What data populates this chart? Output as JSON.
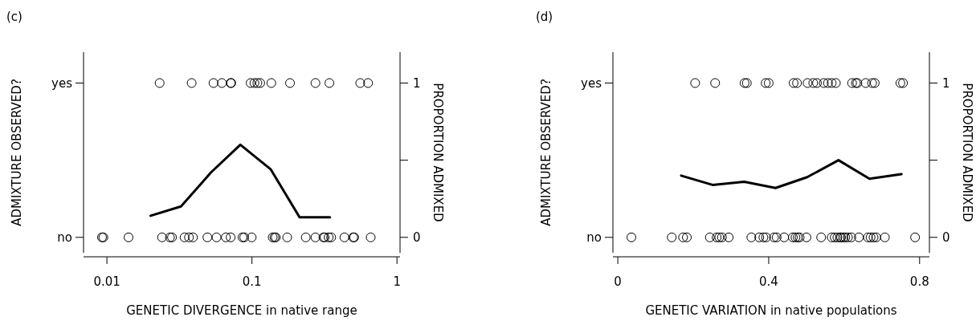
{
  "chart_data": [
    {
      "type": "scatter",
      "title": "(c)",
      "xlabel": "GENETIC DIVERGENCE in native range",
      "ylabel": "ADMIXTURE OBSERVED?",
      "y2label": "PROPORTION ADMIXED",
      "log": "x",
      "marker": "circle",
      "grid": false,
      "xlim": [
        0.0069,
        1.05
      ],
      "xticks": [
        0.01,
        0.1,
        1
      ],
      "y_categories": [
        "yes",
        "no"
      ],
      "y2lim": [
        -0.1,
        1.2
      ],
      "y2ticks": [
        {
          "value": 0,
          "label": "0"
        },
        {
          "value": 0.5,
          "label": null
        },
        {
          "value": 1,
          "label": "1"
        }
      ],
      "series": [
        {
          "axis": "y2",
          "color": "#000000",
          "x": [
            0.0231,
            0.0384,
            0.0543,
            0.0621,
            0.0713,
            0.072,
            0.098,
            0.104,
            0.109,
            0.114,
            0.136,
            0.183,
            0.274,
            0.342,
            0.558,
            0.632
          ],
          "values": [
            1,
            1,
            1,
            1,
            1,
            1,
            1,
            1,
            1,
            1,
            1,
            1,
            1,
            1,
            1,
            1
          ]
        },
        {
          "axis": "y2",
          "color": "#000000",
          "x": [
            0.00925,
            0.00945,
            0.0141,
            0.024,
            0.0272,
            0.0281,
            0.0343,
            0.0368,
            0.0392,
            0.0493,
            0.057,
            0.0661,
            0.0713,
            0.0861,
            0.0885,
            0.0996,
            0.139,
            0.143,
            0.146,
            0.175,
            0.235,
            0.274,
            0.311,
            0.317,
            0.338,
            0.352,
            0.434,
            0.499,
            0.507,
            0.659
          ],
          "values": [
            0,
            0,
            0,
            0,
            0,
            0,
            0,
            0,
            0,
            0,
            0,
            0,
            0,
            0,
            0,
            0,
            0,
            0,
            0,
            0,
            0,
            0,
            0,
            0,
            0,
            0,
            0,
            0,
            0,
            0
          ]
        },
        {
          "type": "line",
          "axis": "y2",
          "color": "#000000",
          "marker": "none",
          "x": [
            0.02,
            0.0324,
            0.0521,
            0.0832,
            0.135,
            0.213,
            0.345
          ],
          "values": [
            0.14,
            0.2,
            0.42,
            0.6,
            0.44,
            0.13,
            0.13
          ]
        }
      ]
    },
    {
      "type": "scatter",
      "title": "(d)",
      "xlabel": "GENETIC VARIATION in native populations",
      "ylabel": "ADMIXTURE OBSERVED?",
      "y2label": "PROPORTION ADMIXED",
      "marker": "circle",
      "grid": false,
      "xlim": [
        -0.013,
        0.826
      ],
      "xticks": [
        0,
        0.4,
        0.8
      ],
      "y_categories": [
        "yes",
        "no"
      ],
      "y2lim": [
        -0.1,
        1.2
      ],
      "y2ticks": [
        {
          "value": 0,
          "label": "0"
        },
        {
          "value": 0.5,
          "label": null
        },
        {
          "value": 1,
          "label": "1"
        }
      ],
      "series": [
        {
          "axis": "y2",
          "color": "#000000",
          "x": [
            0.205,
            0.258,
            0.336,
            0.342,
            0.392,
            0.4,
            0.466,
            0.475,
            0.503,
            0.518,
            0.528,
            0.546,
            0.557,
            0.567,
            0.578,
            0.621,
            0.631,
            0.635,
            0.657,
            0.674,
            0.681,
            0.749,
            0.756
          ],
          "values": [
            1,
            1,
            1,
            1,
            1,
            1,
            1,
            1,
            1,
            1,
            1,
            1,
            1,
            1,
            1,
            1,
            1,
            1,
            1,
            1,
            1,
            1,
            1
          ]
        },
        {
          "axis": "y2",
          "color": "#000000",
          "x": [
            0.036,
            0.143,
            0.173,
            0.183,
            0.244,
            0.262,
            0.269,
            0.276,
            0.294,
            0.354,
            0.375,
            0.386,
            0.393,
            0.414,
            0.421,
            0.441,
            0.464,
            0.471,
            0.477,
            0.482,
            0.5,
            0.539,
            0.567,
            0.575,
            0.582,
            0.589,
            0.592,
            0.598,
            0.603,
            0.61,
            0.619,
            0.639,
            0.663,
            0.67,
            0.678,
            0.685,
            0.708,
            0.788
          ],
          "values": [
            0,
            0,
            0,
            0,
            0,
            0,
            0,
            0,
            0,
            0,
            0,
            0,
            0,
            0,
            0,
            0,
            0,
            0,
            0,
            0,
            0,
            0,
            0,
            0,
            0,
            0,
            0,
            0,
            0,
            0,
            0,
            0,
            0,
            0,
            0,
            0,
            0,
            0
          ]
        },
        {
          "type": "line",
          "axis": "y2",
          "color": "#000000",
          "marker": "none",
          "x": [
            0.168,
            0.251,
            0.335,
            0.418,
            0.502,
            0.585,
            0.667,
            0.752
          ],
          "values": [
            0.4,
            0.34,
            0.36,
            0.32,
            0.39,
            0.5,
            0.38,
            0.41
          ]
        }
      ]
    }
  ]
}
